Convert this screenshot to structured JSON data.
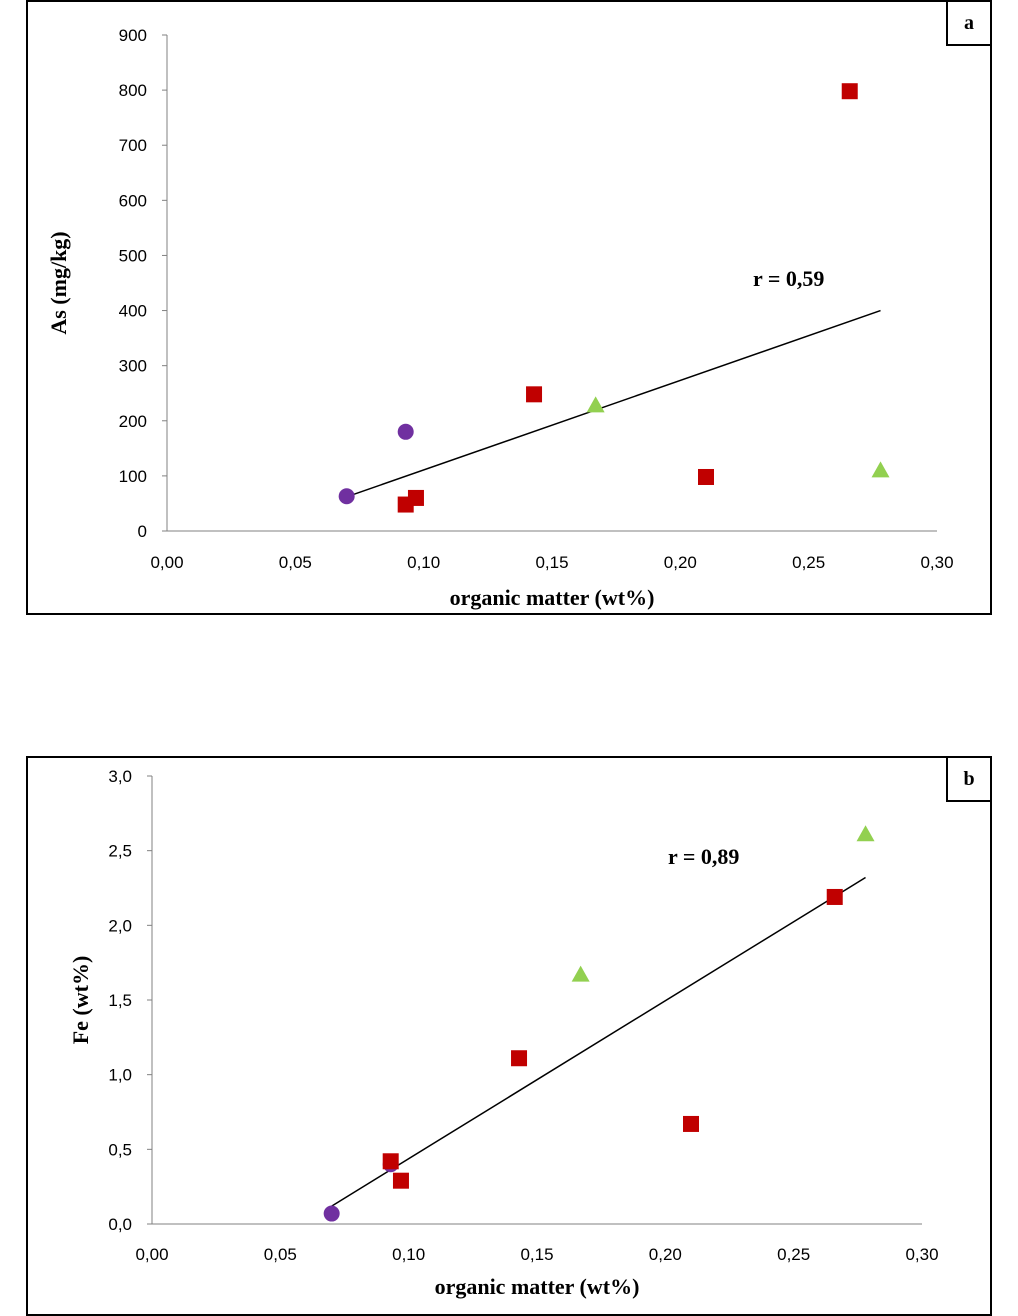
{
  "chart_data": [
    {
      "type": "scatter",
      "panel_label": "a",
      "xlabel": "organic matter (wt%)",
      "ylabel": "As (mg/kg)",
      "xlim": [
        0,
        0.3
      ],
      "ylim": [
        0,
        900
      ],
      "x_ticks": [
        "0,00",
        "0,05",
        "0,10",
        "0,15",
        "0,20",
        "0,25",
        "0,30"
      ],
      "y_ticks": [
        "0",
        "100",
        "200",
        "300",
        "400",
        "500",
        "600",
        "700",
        "800",
        "900"
      ],
      "annotation": "r = 0,59",
      "trendline": {
        "x": [
          0.07,
          0.278
        ],
        "y": [
          62,
          400
        ]
      },
      "series": [
        {
          "marker": "circle",
          "color": "#7030a0",
          "points": [
            {
              "x": 0.07,
              "y": 63
            },
            {
              "x": 0.093,
              "y": 180
            }
          ]
        },
        {
          "marker": "square",
          "color": "#c00000",
          "points": [
            {
              "x": 0.093,
              "y": 48
            },
            {
              "x": 0.097,
              "y": 60
            },
            {
              "x": 0.143,
              "y": 248
            },
            {
              "x": 0.21,
              "y": 98
            },
            {
              "x": 0.266,
              "y": 798
            }
          ]
        },
        {
          "marker": "triangle",
          "color": "#92d050",
          "points": [
            {
              "x": 0.167,
              "y": 228
            },
            {
              "x": 0.278,
              "y": 110
            }
          ]
        }
      ]
    },
    {
      "type": "scatter",
      "panel_label": "b",
      "xlabel": "organic matter (wt%)",
      "ylabel": "Fe (wt%)",
      "xlim": [
        0,
        0.3
      ],
      "ylim": [
        0,
        3.0
      ],
      "x_ticks": [
        "0,00",
        "0,05",
        "0,10",
        "0,15",
        "0,20",
        "0,25",
        "0,30"
      ],
      "y_ticks": [
        "0,0",
        "0,5",
        "1,0",
        "1,5",
        "2,0",
        "2,5",
        "3,0"
      ],
      "annotation": "r = 0,89",
      "trendline": {
        "x": [
          0.07,
          0.278
        ],
        "y": [
          0.12,
          2.32
        ]
      },
      "series": [
        {
          "marker": "circle",
          "color": "#7030a0",
          "points": [
            {
              "x": 0.07,
              "y": 0.07
            },
            {
              "x": 0.093,
              "y": 0.4
            }
          ]
        },
        {
          "marker": "square",
          "color": "#c00000",
          "points": [
            {
              "x": 0.093,
              "y": 0.42
            },
            {
              "x": 0.097,
              "y": 0.29
            },
            {
              "x": 0.143,
              "y": 1.11
            },
            {
              "x": 0.21,
              "y": 0.67
            },
            {
              "x": 0.266,
              "y": 2.19
            }
          ]
        },
        {
          "marker": "triangle",
          "color": "#92d050",
          "points": [
            {
              "x": 0.167,
              "y": 1.67
            },
            {
              "x": 0.278,
              "y": 2.61
            }
          ]
        }
      ]
    }
  ]
}
